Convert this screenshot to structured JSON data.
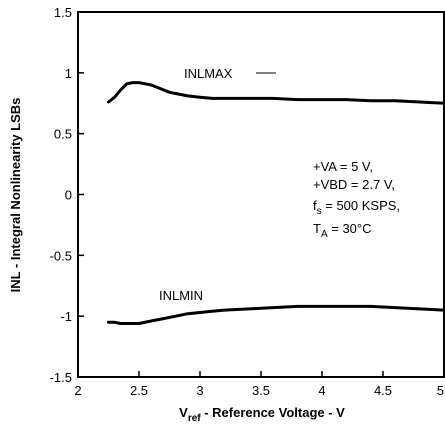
{
  "chart_data": {
    "type": "line",
    "xlabel": {
      "main": "V",
      "sub": "ref",
      "rest": " - Reference Voltage - V"
    },
    "ylabel": "INL - Integral Nonlinearity LSBs",
    "xlim": [
      2,
      5
    ],
    "ylim": [
      -1.5,
      1.5
    ],
    "x_ticks": [
      "2",
      "2.5",
      "3",
      "3.5",
      "4",
      "4.5",
      "5"
    ],
    "y_ticks": [
      "1.5",
      "1",
      "0.5",
      "0",
      "-0.5",
      "-1",
      "-1.5"
    ],
    "grid": false,
    "series": [
      {
        "name": "INLMAX",
        "x": [
          2.25,
          2.3,
          2.35,
          2.4,
          2.45,
          2.5,
          2.55,
          2.6,
          2.65,
          2.7,
          2.75,
          2.8,
          2.9,
          3.0,
          3.1,
          3.2,
          3.4,
          3.6,
          3.8,
          4.0,
          4.2,
          4.4,
          4.6,
          4.8,
          5.0
        ],
        "y": [
          0.76,
          0.8,
          0.86,
          0.91,
          0.92,
          0.92,
          0.91,
          0.9,
          0.88,
          0.86,
          0.84,
          0.83,
          0.81,
          0.8,
          0.79,
          0.79,
          0.79,
          0.79,
          0.78,
          0.78,
          0.78,
          0.77,
          0.77,
          0.76,
          0.75
        ]
      },
      {
        "name": "INLMIN",
        "x": [
          2.25,
          2.3,
          2.35,
          2.4,
          2.5,
          2.6,
          2.7,
          2.8,
          2.9,
          3.0,
          3.1,
          3.2,
          3.4,
          3.6,
          3.8,
          4.0,
          4.2,
          4.4,
          4.6,
          4.8,
          5.0
        ],
        "y": [
          -1.05,
          -1.05,
          -1.06,
          -1.06,
          -1.06,
          -1.04,
          -1.02,
          -1.0,
          -0.98,
          -0.97,
          -0.96,
          -0.95,
          -0.94,
          -0.93,
          -0.92,
          -0.92,
          -0.92,
          -0.92,
          -0.93,
          -0.94,
          -0.95
        ]
      }
    ],
    "annotations": {
      "inlmax_label": "INLMAX",
      "inlmin_label": "INLMIN",
      "cond_va": "+VA = 5 V,",
      "cond_vbd": "+VBD = 2.7 V,",
      "cond_fs_main": "f",
      "cond_fs_sub": "s",
      "cond_fs_rest": " = 500 KSPS,",
      "cond_ta_main": "T",
      "cond_ta_sub": "A",
      "cond_ta_rest": " = 30°C"
    }
  }
}
